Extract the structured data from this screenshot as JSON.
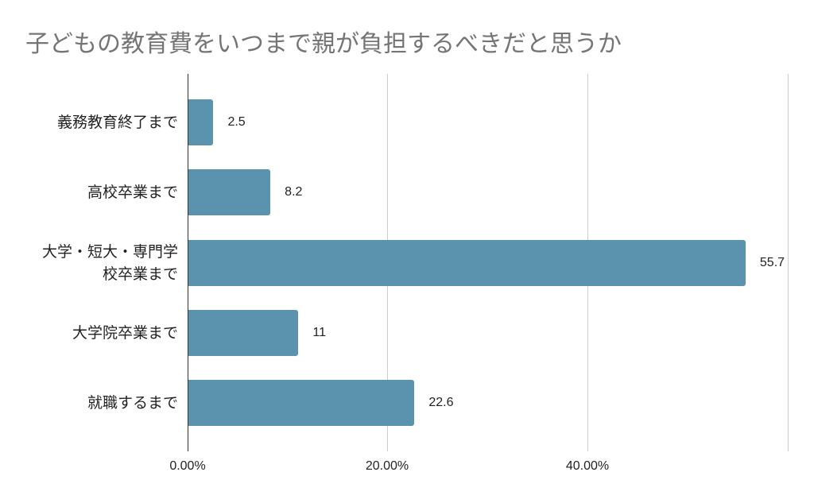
{
  "chart_data": {
    "type": "bar",
    "orientation": "horizontal",
    "title": "子どもの教育費をいつまで親が負担するべきだと思うか",
    "categories": [
      "義務教育終了まで",
      "高校卒業まで",
      "大学・短大・専門学校卒業まで",
      "大学院卒業まで",
      "就職するまで"
    ],
    "category_lines": [
      [
        "義務教育終了まで"
      ],
      [
        "高校卒業まで"
      ],
      [
        "大学・短大・専門学",
        "校卒業まで"
      ],
      [
        "大学院卒業まで"
      ],
      [
        "就職するまで"
      ]
    ],
    "values": [
      2.5,
      8.2,
      55.7,
      11,
      22.6
    ],
    "value_labels": [
      "2.5",
      "8.2",
      "55.7",
      "11",
      "22.6"
    ],
    "xlabel": "",
    "ylabel": "",
    "xlim": [
      0,
      60
    ],
    "x_ticks": [
      "0.00%",
      "20.00%",
      "40.00%"
    ],
    "grid": true,
    "legend": "none",
    "bar_color": "#5b93ae"
  }
}
